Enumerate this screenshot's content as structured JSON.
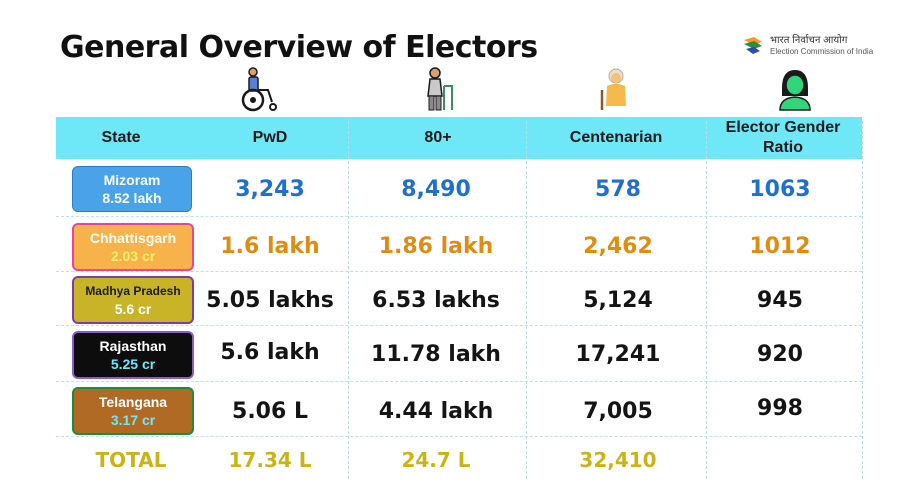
{
  "title": "General Overview of Electors",
  "logo": {
    "hindi": "भारत निर्वाचन आयोग",
    "english": "Election Commission of India"
  },
  "icons": [
    "wheelchair-icon",
    "elderly-walker-icon",
    "centenarian-icon",
    "woman-icon"
  ],
  "headers": [
    "State",
    "PwD",
    "80+",
    "Centenarian",
    "Elector Gender Ratio"
  ],
  "rows": [
    {
      "state": "Mizoram",
      "electors": "8.52 lakh",
      "pwd": "3,243",
      "eighty": "8,490",
      "centenarian": "578",
      "ratio": "1063",
      "box_color": "#4aa3e8",
      "value_color": "#1f6fd1"
    },
    {
      "state": "Chhattisgarh",
      "electors": "2.03 cr",
      "pwd": "1.6 lakh",
      "eighty": "1.86 lakh",
      "centenarian": "2,462",
      "ratio": "1012",
      "box_color": "#f7b24a",
      "value_color": "#de8c12"
    },
    {
      "state": "Madhya Pradesh",
      "electors": "5.6 cr",
      "pwd": "5.05 lakhs",
      "eighty": "6.53 lakhs",
      "centenarian": "5,124",
      "ratio": "945",
      "box_color": "#c9b427",
      "value_color": "#141414"
    },
    {
      "state": "Rajasthan",
      "electors": "5.25 cr",
      "pwd": "5.6 lakh",
      "eighty": "11.78 lakh",
      "centenarian": "17,241",
      "ratio": "920",
      "box_color": "#0d0d0d",
      "value_color": "#141414"
    },
    {
      "state": "Telangana",
      "electors": "3.17 cr",
      "pwd": "5.06 L",
      "eighty": "4.44 lakh",
      "centenarian": "7,005",
      "ratio": "998",
      "box_color": "#b06a24",
      "value_color": "#141414"
    }
  ],
  "total": {
    "label": "TOTAL",
    "pwd": "17.34 L",
    "eighty": "24.7 L",
    "centenarian": "32,410"
  }
}
